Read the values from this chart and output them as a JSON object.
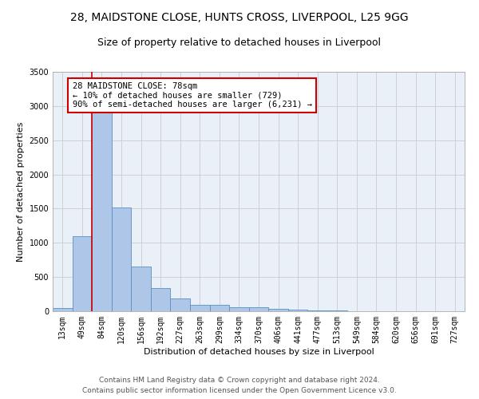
{
  "title_line1": "28, MAIDSTONE CLOSE, HUNTS CROSS, LIVERPOOL, L25 9GG",
  "title_line2": "Size of property relative to detached houses in Liverpool",
  "xlabel": "Distribution of detached houses by size in Liverpool",
  "ylabel": "Number of detached properties",
  "categories": [
    "13sqm",
    "49sqm",
    "84sqm",
    "120sqm",
    "156sqm",
    "192sqm",
    "227sqm",
    "263sqm",
    "299sqm",
    "334sqm",
    "370sqm",
    "406sqm",
    "441sqm",
    "477sqm",
    "513sqm",
    "549sqm",
    "584sqm",
    "620sqm",
    "656sqm",
    "691sqm",
    "727sqm"
  ],
  "values": [
    50,
    1100,
    2920,
    1520,
    650,
    340,
    190,
    95,
    90,
    55,
    55,
    30,
    25,
    10,
    10,
    5,
    5,
    2,
    2,
    1,
    1
  ],
  "bar_color": "#aec6e8",
  "bar_edge_color": "#5a8fc2",
  "annotation_box_text": "28 MAIDSTONE CLOSE: 78sqm\n← 10% of detached houses are smaller (729)\n90% of semi-detached houses are larger (6,231) →",
  "annotation_box_color": "#ffffff",
  "annotation_box_edge_color": "#cc0000",
  "vline_color": "#cc0000",
  "vline_x": 1.5,
  "ylim": [
    0,
    3500
  ],
  "yticks": [
    0,
    500,
    1000,
    1500,
    2000,
    2500,
    3000,
    3500
  ],
  "grid_color": "#cccccc",
  "bg_color": "#eaf0f8",
  "footer_line1": "Contains HM Land Registry data © Crown copyright and database right 2024.",
  "footer_line2": "Contains public sector information licensed under the Open Government Licence v3.0.",
  "title_fontsize": 10,
  "subtitle_fontsize": 9,
  "axis_label_fontsize": 8,
  "tick_fontsize": 7,
  "annotation_fontsize": 7.5,
  "footer_fontsize": 6.5
}
